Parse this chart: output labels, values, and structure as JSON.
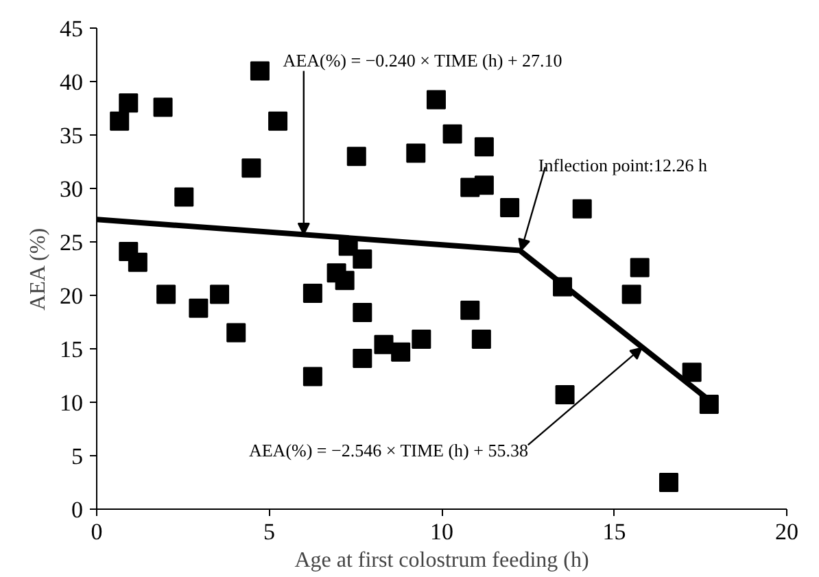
{
  "chart_data": {
    "type": "scatter",
    "xlabel": "Age at first colostrum feeding (h)",
    "ylabel": "AEA (%)",
    "xlim": [
      0,
      20
    ],
    "xticks": [
      0,
      5,
      10,
      15,
      20
    ],
    "ylim": [
      0,
      45
    ],
    "yticks": [
      0,
      5,
      10,
      15,
      20,
      25,
      30,
      35,
      40,
      45
    ],
    "grid": false,
    "series": [
      {
        "color": "#000000",
        "marker": "square",
        "x": [
          0.66,
          0.92,
          1.92,
          2.53,
          0.92,
          1.19,
          2.01,
          2.95,
          3.56,
          4.04,
          4.48,
          4.73,
          5.25,
          6.26,
          6.26,
          6.95,
          7.19,
          7.29,
          7.7,
          7.53,
          7.7,
          7.7,
          8.32,
          8.81,
          9.41,
          9.25,
          9.84,
          10.31,
          11.23,
          10.82,
          11.23,
          11.97,
          14.07,
          15.74,
          15.5,
          13.5,
          10.82,
          11.15,
          13.57,
          17.25,
          17.75,
          16.58
        ],
        "values": [
          36.3,
          38.0,
          37.6,
          29.2,
          24.1,
          23.1,
          20.1,
          18.8,
          20.1,
          16.5,
          31.9,
          41.0,
          36.3,
          20.2,
          12.4,
          22.1,
          21.4,
          24.6,
          23.4,
          33.0,
          18.4,
          14.1,
          15.4,
          14.7,
          15.9,
          33.3,
          38.3,
          35.1,
          33.9,
          30.1,
          30.3,
          28.2,
          28.1,
          22.6,
          20.1,
          20.8,
          18.6,
          15.9,
          10.7,
          12.8,
          9.8,
          2.5
        ]
      },
      {
        "type": "line",
        "color": "#000000",
        "x": [
          0,
          12.26,
          17.75
        ],
        "values": [
          27.1,
          24.2,
          10.2
        ]
      }
    ],
    "annotations": [
      {
        "text": "AEA(%) = −0.240 × TIME (h) + 27.10",
        "x": 6.0,
        "y": 25.7
      },
      {
        "text": "Inflection point:12.26 h",
        "x": 12.3,
        "y": 24.2
      },
      {
        "text": "AEA(%) =    −2.546 × TIME (h) + 55.38",
        "x": 15.8,
        "y": 15.1
      }
    ]
  }
}
